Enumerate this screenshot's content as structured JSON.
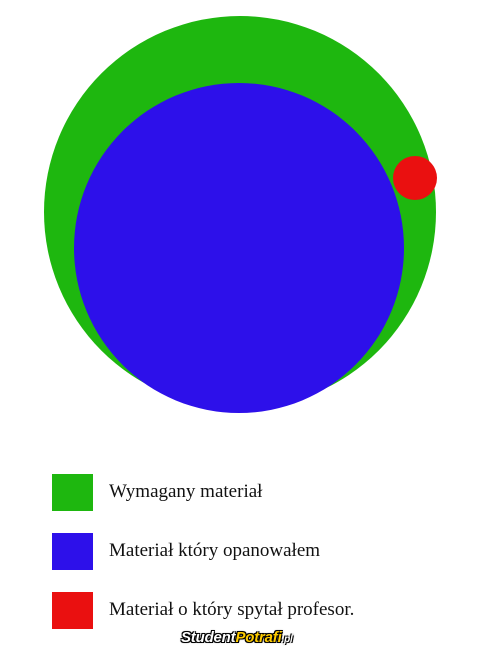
{
  "colors": {
    "required": "#1eb70f",
    "mastered": "#2d10ea",
    "asked": "#ea1010"
  },
  "legend": [
    {
      "key": "required",
      "label": "Wymagany materiał"
    },
    {
      "key": "mastered",
      "label": "Materiał który opanowałem"
    },
    {
      "key": "asked",
      "label": "Materiał o który spytał profesor."
    }
  ],
  "watermark": {
    "part1": "Student",
    "part2": "Potrafi",
    "part3": ".pl"
  }
}
